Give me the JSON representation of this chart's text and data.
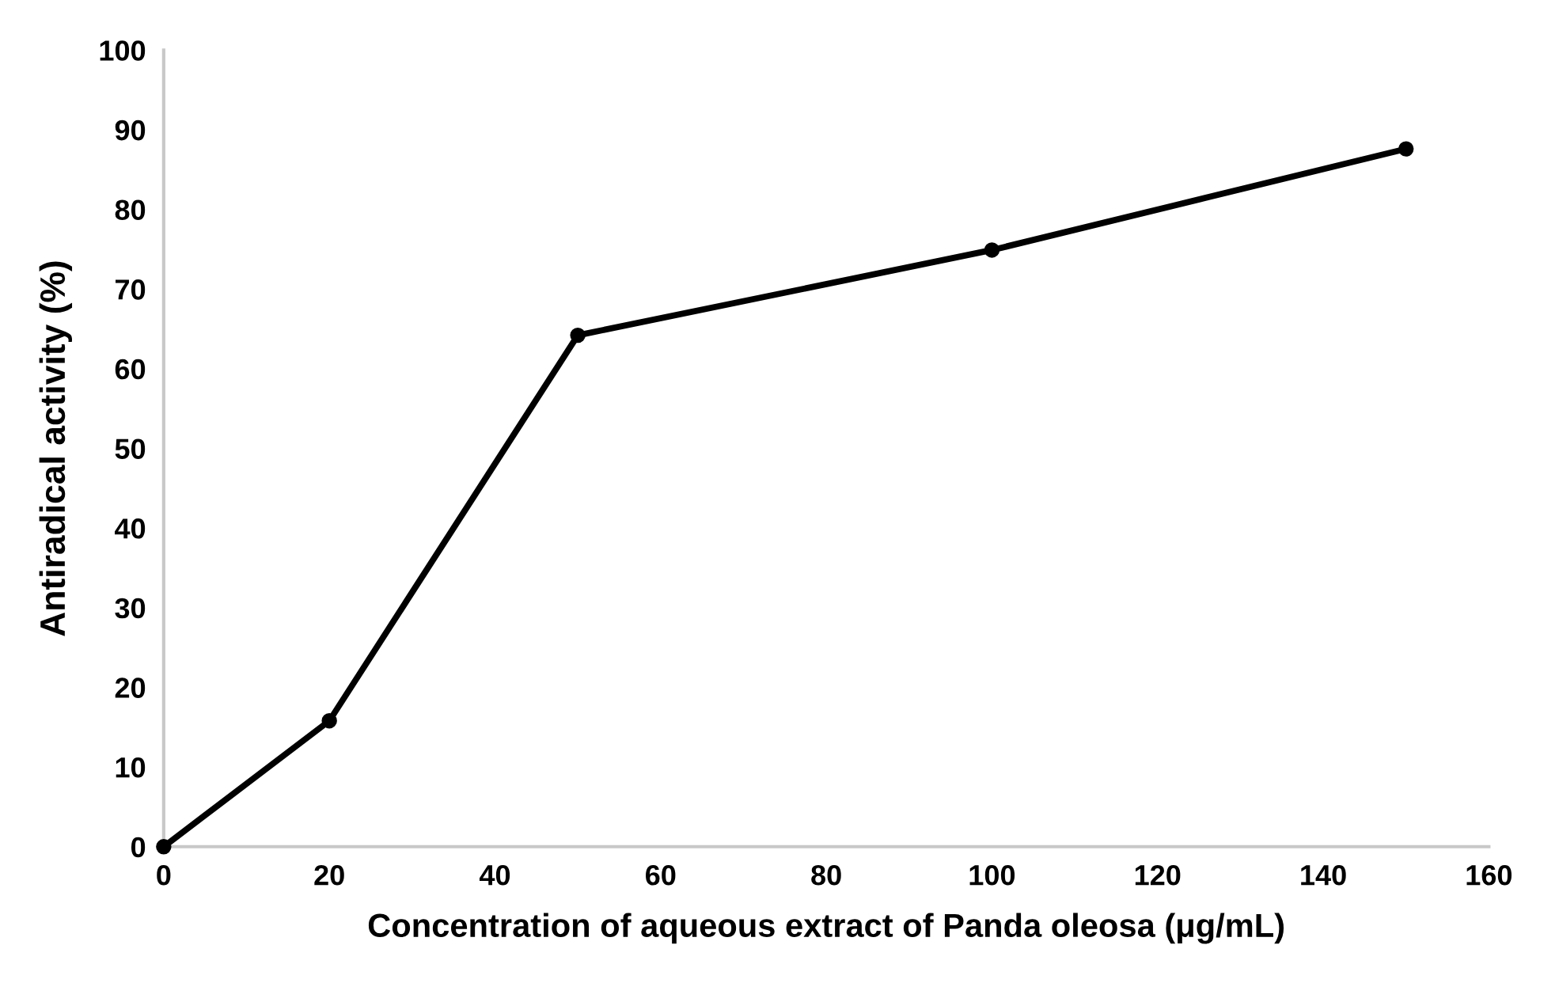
{
  "chart_data": {
    "type": "line",
    "xlabel": "Concentration of aqueous extract of Panda oleosa (μg/mL)",
    "ylabel": "Antiradical activity (%)",
    "x": [
      0,
      20,
      50,
      100,
      150
    ],
    "series": [
      {
        "color": "#000000",
        "values": [
          0,
          15.8,
          64.2,
          74.9,
          87.6
        ]
      }
    ],
    "xlim": [
      0,
      160
    ],
    "xticks": [
      0,
      20,
      40,
      60,
      80,
      100,
      120,
      140,
      160
    ],
    "ylim": [
      0,
      100
    ],
    "yticks": [
      0,
      10,
      20,
      30,
      40,
      50,
      60,
      70,
      80,
      90,
      100
    ],
    "marker": "circle",
    "line_style": "solid",
    "grid": false,
    "legend": false
  }
}
